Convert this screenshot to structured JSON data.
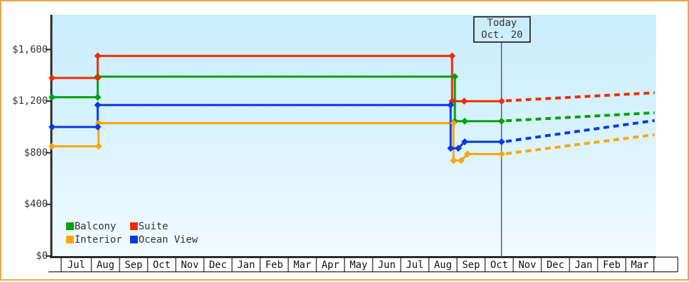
{
  "chart_data": {
    "type": "line",
    "description": "Cabin price history by category with projection after today",
    "grid": false,
    "legend_position": "bottom-left-inside-plot",
    "y_axis": {
      "ylim": [
        0,
        1870
      ],
      "ticks": [
        {
          "label": "$0",
          "value": 0
        },
        {
          "label": "$400",
          "value": 400
        },
        {
          "label": "$800",
          "value": 800
        },
        {
          "label": "$1,200",
          "value": 1200
        },
        {
          "label": "$1,600",
          "value": 1600
        }
      ]
    },
    "x_axis": {
      "months": [
        "Jul",
        "Aug",
        "Sep",
        "Oct",
        "Nov",
        "Dec",
        "Jan",
        "Feb",
        "Mar",
        "Apr",
        "May",
        "Jun",
        "Jul",
        "Aug",
        "Sep",
        "Oct",
        "Nov",
        "Dec",
        "Jan",
        "Feb",
        "Mar"
      ]
    },
    "today_marker": {
      "line1": "Today",
      "line2": "Oct. 20",
      "month_position": 15.66
    },
    "series": [
      {
        "name": "Balcony",
        "color": "#00A10B",
        "solid_points": [
          [
            -0.325,
            1230
          ],
          [
            1.3,
            1230
          ],
          [
            1.3,
            1390
          ],
          [
            14.0,
            1390
          ],
          [
            14.0,
            1045
          ],
          [
            14.35,
            1045
          ],
          [
            15.66,
            1045
          ]
        ],
        "projection_points": [
          [
            15.82,
            1048
          ],
          [
            21.1,
            1110
          ]
        ]
      },
      {
        "name": "Suite",
        "color": "#F02B02",
        "solid_points": [
          [
            -0.325,
            1380
          ],
          [
            1.3,
            1380
          ],
          [
            1.3,
            1550
          ],
          [
            13.9,
            1550
          ],
          [
            13.9,
            1200
          ],
          [
            14.33,
            1200
          ],
          [
            15.66,
            1200
          ]
        ],
        "projection_points": [
          [
            15.82,
            1203
          ],
          [
            21.1,
            1265
          ]
        ]
      },
      {
        "name": "Interior",
        "color": "#FFA400",
        "solid_points": [
          [
            -0.325,
            850
          ],
          [
            1.33,
            850
          ],
          [
            1.33,
            1030
          ],
          [
            13.95,
            1030
          ],
          [
            13.95,
            740
          ],
          [
            14.22,
            740
          ],
          [
            14.45,
            790
          ],
          [
            15.66,
            790
          ]
        ],
        "projection_points": [
          [
            15.82,
            793
          ],
          [
            21.1,
            940
          ]
        ]
      },
      {
        "name": "Ocean View",
        "color": "#0438E8",
        "solid_points": [
          [
            -0.325,
            1000
          ],
          [
            1.3,
            1000
          ],
          [
            1.3,
            1170
          ],
          [
            13.85,
            1170
          ],
          [
            13.85,
            835
          ],
          [
            14.12,
            835
          ],
          [
            14.35,
            885
          ],
          [
            15.66,
            885
          ]
        ],
        "projection_points": [
          [
            15.82,
            888
          ],
          [
            21.1,
            1050
          ]
        ]
      }
    ],
    "legend": [
      {
        "label": "Balcony",
        "color": "#00A10B"
      },
      {
        "label": "Suite",
        "color": "#F02B02"
      },
      {
        "label": "Interior",
        "color": "#FFA400"
      },
      {
        "label": "Ocean View",
        "color": "#0438E8"
      }
    ]
  }
}
